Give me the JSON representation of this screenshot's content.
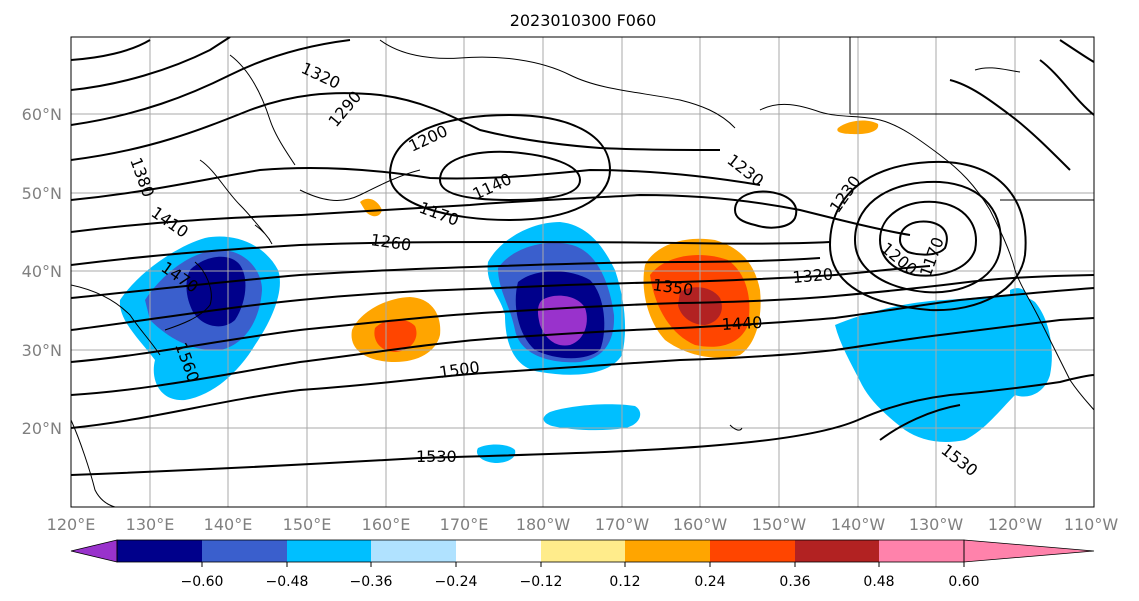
{
  "title": "2023010300 F060",
  "lat_labels": [
    "20°N",
    "30°N",
    "40°N",
    "50°N",
    "60°N"
  ],
  "lon_labels": [
    "120°E",
    "130°E",
    "140°E",
    "150°E",
    "160°E",
    "170°E",
    "180°W",
    "170°W",
    "160°W",
    "150°W",
    "140°W",
    "130°W",
    "120°W",
    "110°W"
  ],
  "contour_labels": [
    "1320",
    "1290",
    "1380",
    "1410",
    "1470",
    "1560",
    "1200",
    "1140",
    "1170",
    "1260",
    "1230",
    "1230",
    "1200",
    "1170",
    "1320",
    "1350",
    "1440",
    "1500",
    "1530",
    "1530"
  ],
  "colorbar": {
    "tick_labels": [
      "−0.60",
      "−0.48",
      "−0.36",
      "−0.24",
      "−0.12",
      "0.12",
      "0.24",
      "0.36",
      "0.48",
      "0.60"
    ],
    "colors": [
      "#9932cc",
      "#00008b",
      "#3a5fcd",
      "#00bfff",
      "#b0e2ff",
      "#ffffff",
      "#ffec8b",
      "#ffa500",
      "#ff4500",
      "#b22222",
      "#ff82ab"
    ]
  }
}
